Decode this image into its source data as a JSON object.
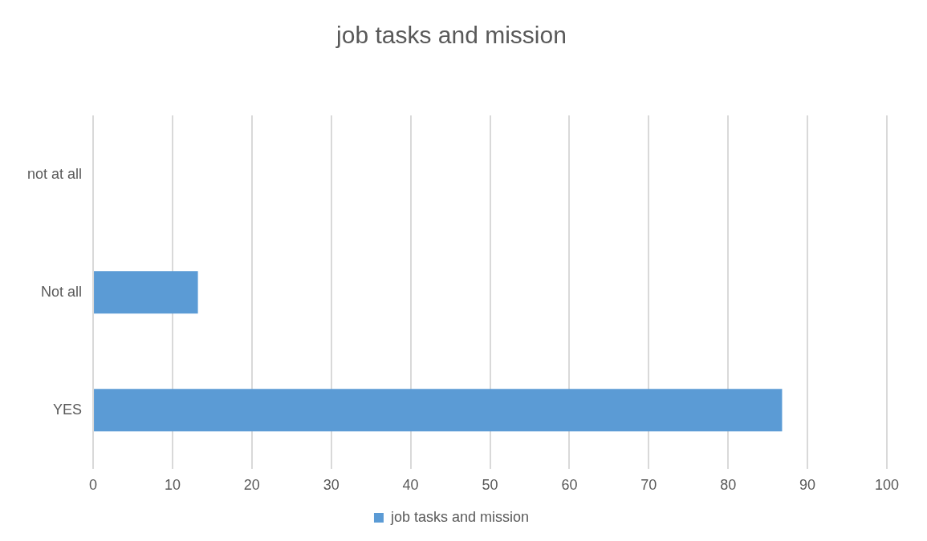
{
  "chart_data": {
    "type": "bar",
    "orientation": "horizontal",
    "title": "job tasks and mission",
    "categories": [
      "not at all",
      "Not all",
      "YES"
    ],
    "series": [
      {
        "name": "job tasks and mission",
        "color": "#5b9bd5",
        "values": [
          0,
          13.2,
          86.8
        ]
      }
    ],
    "xlim": [
      0,
      100
    ],
    "xticks": [
      0,
      10,
      20,
      30,
      40,
      50,
      60,
      70,
      80,
      90,
      100
    ],
    "grid": "x",
    "legend": "bottom"
  }
}
